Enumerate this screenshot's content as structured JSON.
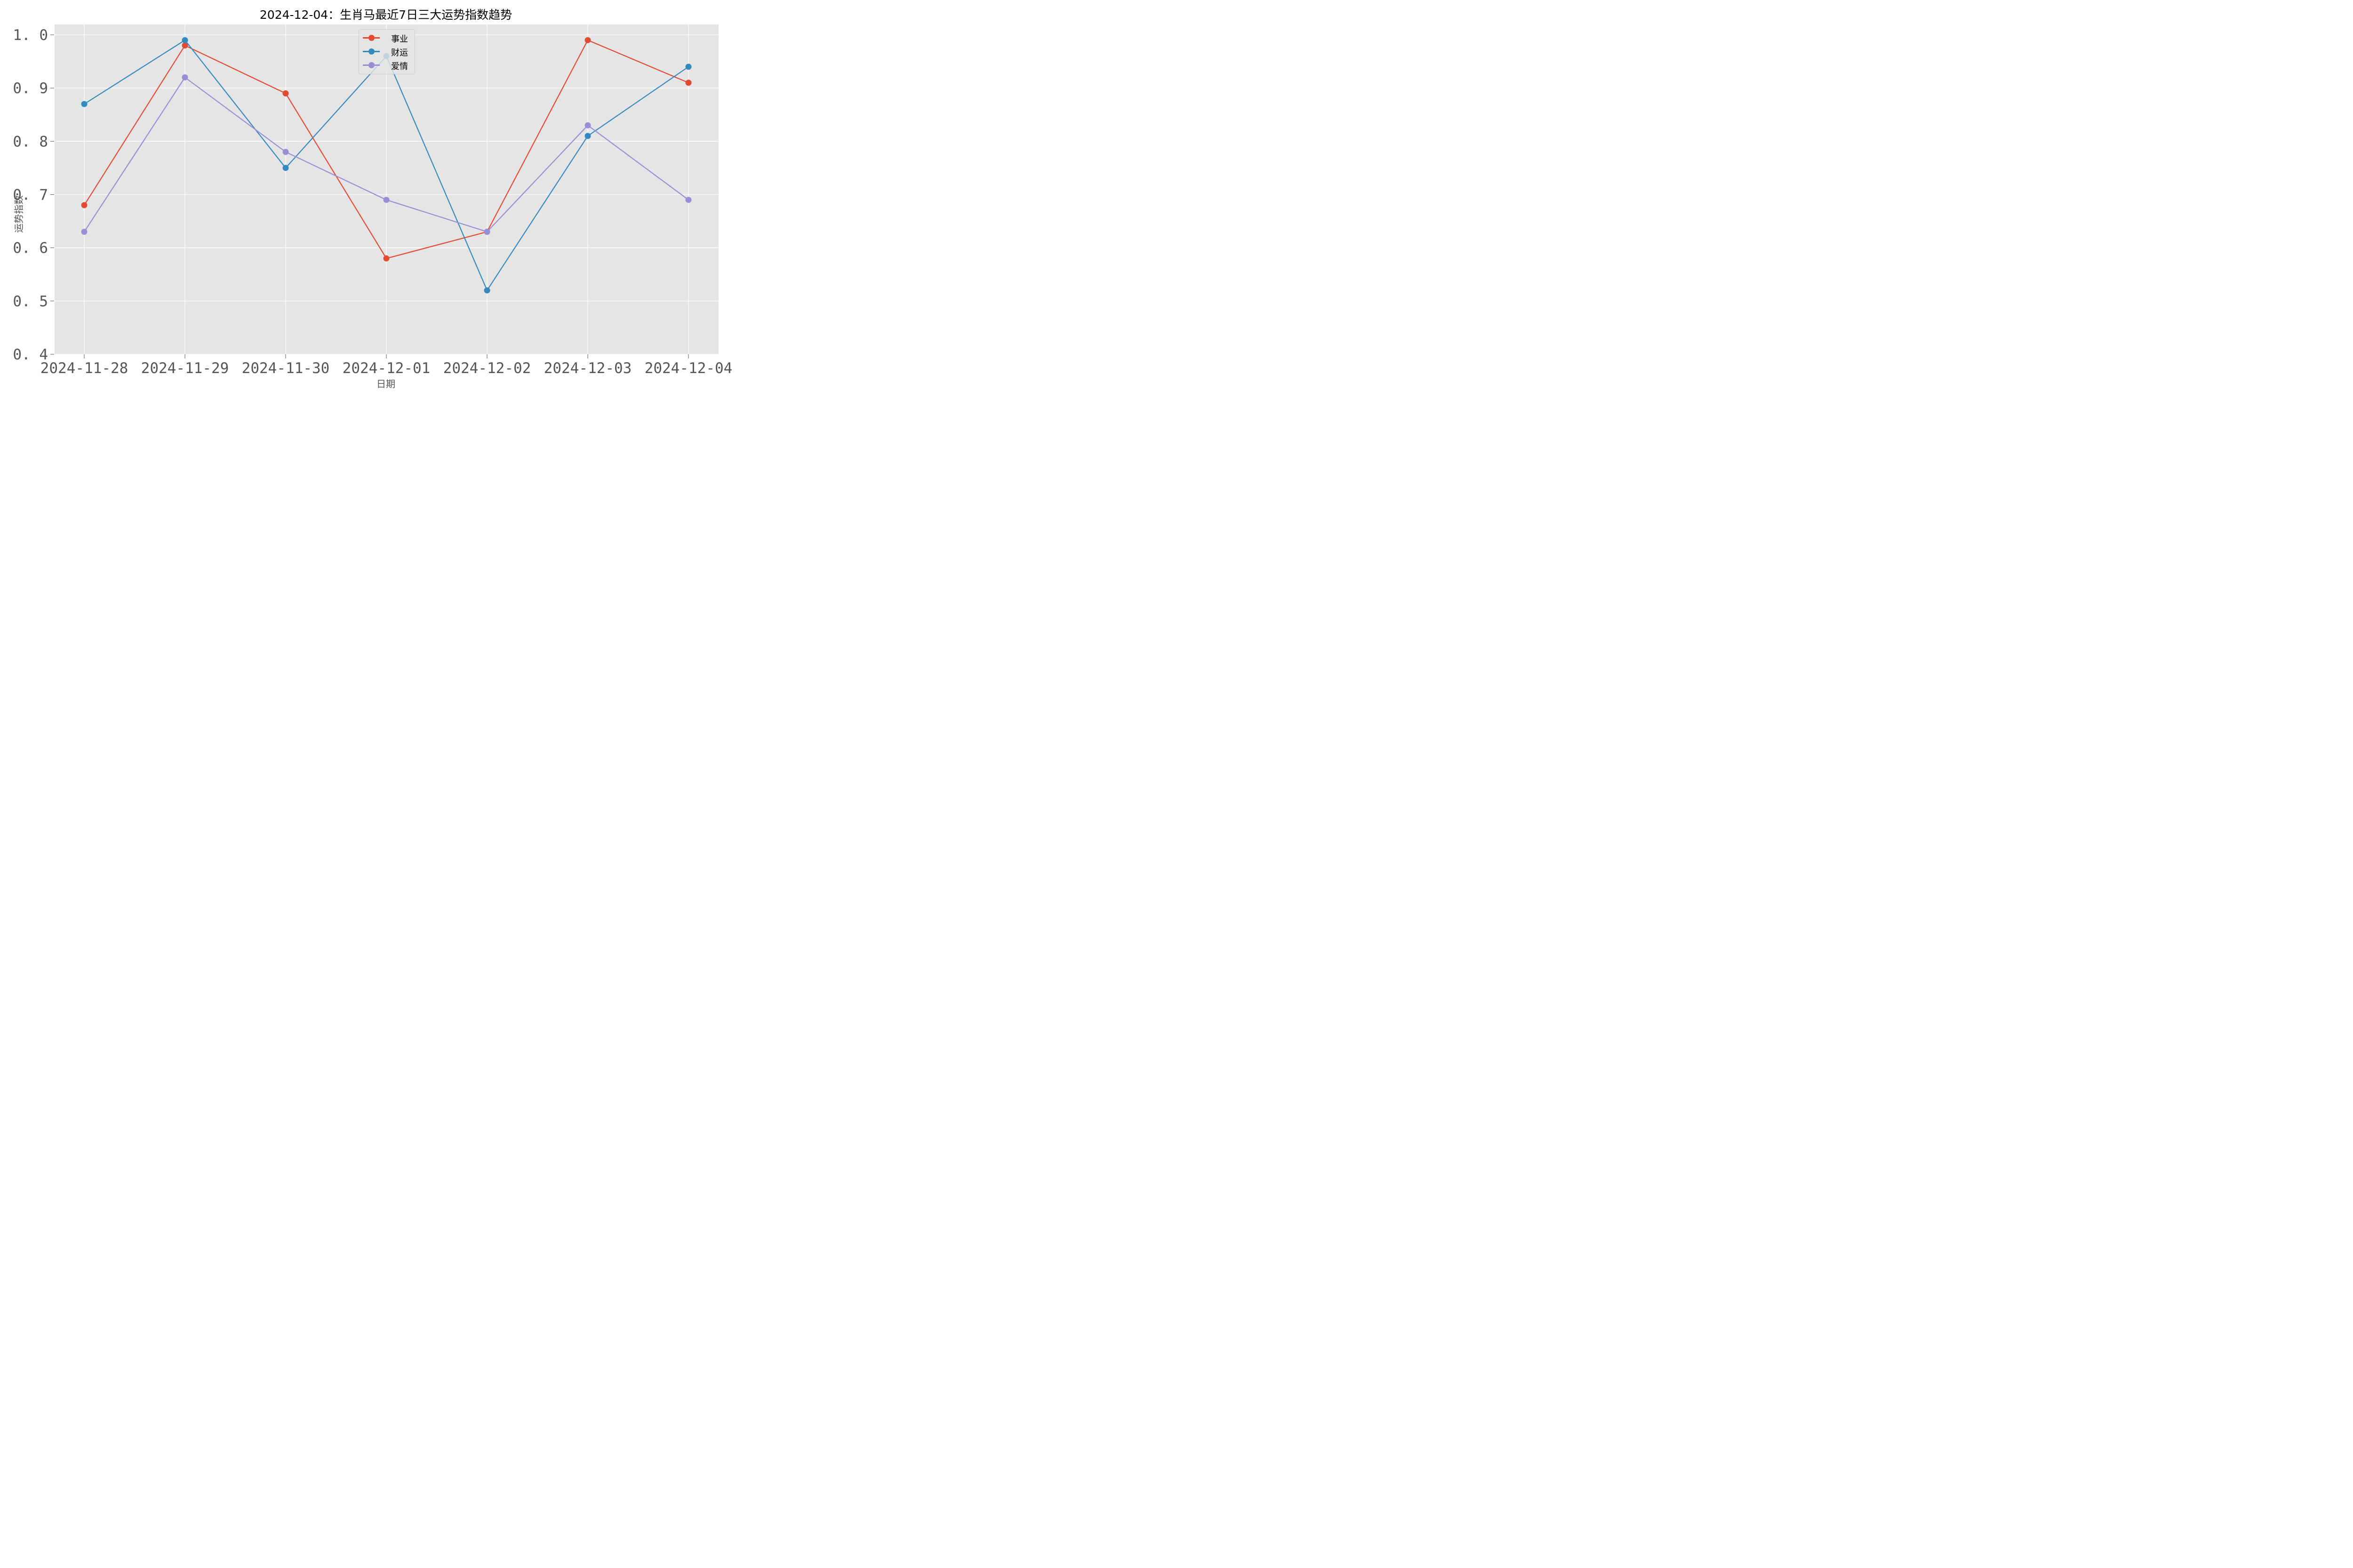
{
  "title": "2024-12-04：生肖马最近7日三大运势指数趋势",
  "xlabel": "日期",
  "ylabel": "运势指数",
  "colors": {
    "事业": "#E24A33",
    "财运": "#348ABD",
    "爱情": "#988ED5",
    "plot_bg": "#E5E5E5",
    "grid": "#FFFFFF"
  },
  "legend": [
    {
      "label": "事业",
      "color": "#E24A33"
    },
    {
      "label": "财运",
      "color": "#348ABD"
    },
    {
      "label": "爱情",
      "color": "#988ED5"
    }
  ],
  "chart_data": {
    "type": "line",
    "title": "2024-12-04：生肖马最近7日三大运势指数趋势",
    "xlabel": "日期",
    "ylabel": "运势指数",
    "categories": [
      "2024-11-28",
      "2024-11-29",
      "2024-11-30",
      "2024-12-01",
      "2024-12-02",
      "2024-12-03",
      "2024-12-04"
    ],
    "series": [
      {
        "name": "事业",
        "color": "#E24A33",
        "values": [
          0.68,
          0.98,
          0.89,
          0.58,
          0.63,
          0.99,
          0.91
        ]
      },
      {
        "name": "财运",
        "color": "#348ABD",
        "values": [
          0.87,
          0.99,
          0.75,
          0.96,
          0.52,
          0.81,
          0.94
        ]
      },
      {
        "name": "爱情",
        "color": "#988ED5",
        "values": [
          0.63,
          0.92,
          0.78,
          0.69,
          0.63,
          0.83,
          0.69
        ]
      }
    ],
    "ylim": [
      0.4,
      1.02
    ],
    "yticks": [
      "0.4",
      "0.5",
      "0.6",
      "0.7",
      "0.8",
      "0.9",
      "1.0"
    ],
    "grid": true,
    "legend_position": "upper center",
    "markers": "circle"
  }
}
